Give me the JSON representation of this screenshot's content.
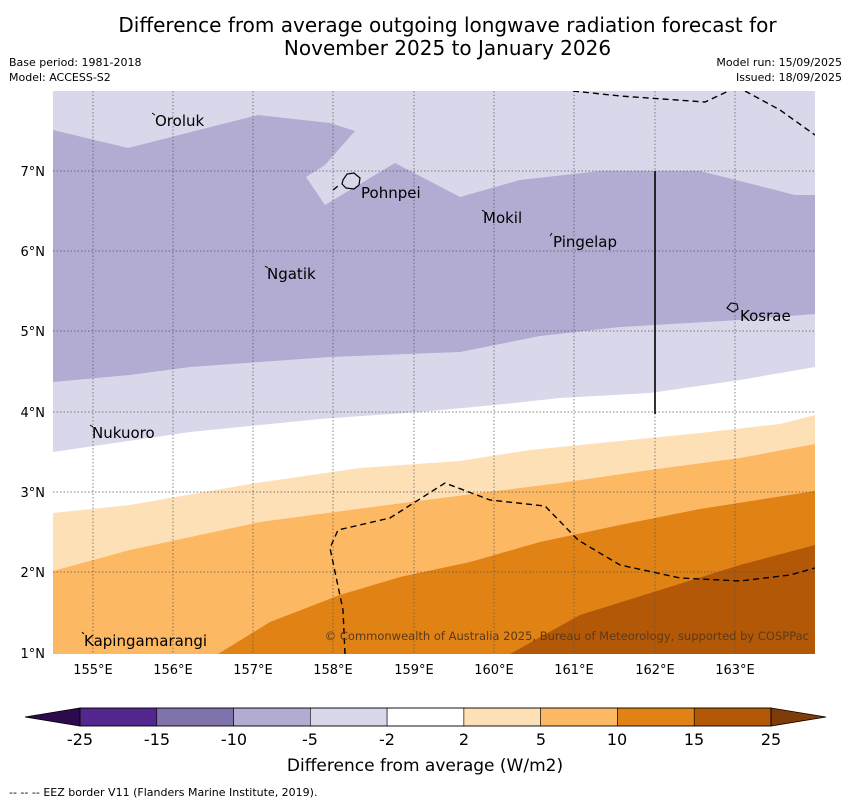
{
  "header": {
    "title_line1": "Difference from average outgoing longwave radiation forecast for",
    "title_line2": "November 2025 to January 2026",
    "base_period": "Base period: 1981-2018",
    "model": "Model: ACCESS-S2",
    "model_run": "Model run: 15/09/2025",
    "issued": "Issued: 18/09/2025"
  },
  "map": {
    "x_ticks": [
      "155°E",
      "156°E",
      "157°E",
      "158°E",
      "159°E",
      "160°E",
      "161°E",
      "162°E",
      "163°E"
    ],
    "y_ticks": [
      "7°N",
      "6°N",
      "5°N",
      "4°N",
      "3°N",
      "2°N",
      "1°N"
    ],
    "places": {
      "oroluk": "Oroluk",
      "pohnpei": "Pohnpei",
      "mokil": "Mokil",
      "pingelap": "Pingelap",
      "ngatik": "Ngatik",
      "kosrae": "Kosrae",
      "nukuoro": "Nukuoro",
      "kapingamarangi": "Kapingamarangi"
    },
    "copyright": "© Commonwealth of Australia 2025, Bureau of Meteorology, supported by COSPPac"
  },
  "colorbar": {
    "ticks": [
      "-25",
      "-15",
      "-10",
      "-5",
      "-2",
      "2",
      "5",
      "10",
      "15",
      "25"
    ],
    "colors": [
      "#54278f",
      "#8073ac",
      "#b2abd2",
      "#d8d8ea",
      "#ffffff",
      "#fee0b6",
      "#fdb863",
      "#e08214",
      "#b35806"
    ],
    "label": "Difference from average (W/m2)"
  },
  "footer": {
    "legend_marker": "--  --  --",
    "legend_text": "EEZ border V11 (Flanders Marine Institute, 2019)."
  }
}
